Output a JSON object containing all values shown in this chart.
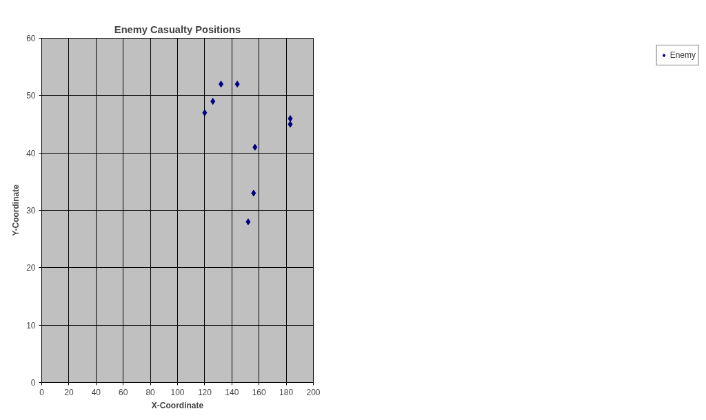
{
  "chart_data": {
    "type": "scatter",
    "title": "Enemy Casualty Positions",
    "xlabel": "X-Coordinate",
    "ylabel": "Y-Coordinate",
    "x": [
      120,
      126,
      132,
      144,
      157,
      156,
      152,
      183,
      183
    ],
    "series": [
      {
        "name": "Enemy",
        "color": "#000080",
        "values": [
          47,
          49,
          52,
          52,
          41,
          33,
          28,
          46,
          45
        ]
      }
    ],
    "xlim": [
      0,
      200
    ],
    "xticks": [
      0,
      20,
      40,
      60,
      80,
      100,
      120,
      140,
      160,
      180,
      200
    ],
    "ylim": [
      0,
      60
    ],
    "yticks": [
      0,
      10,
      20,
      30,
      40,
      50,
      60
    ],
    "grid": true,
    "legend": "right",
    "marker": "diamond"
  }
}
